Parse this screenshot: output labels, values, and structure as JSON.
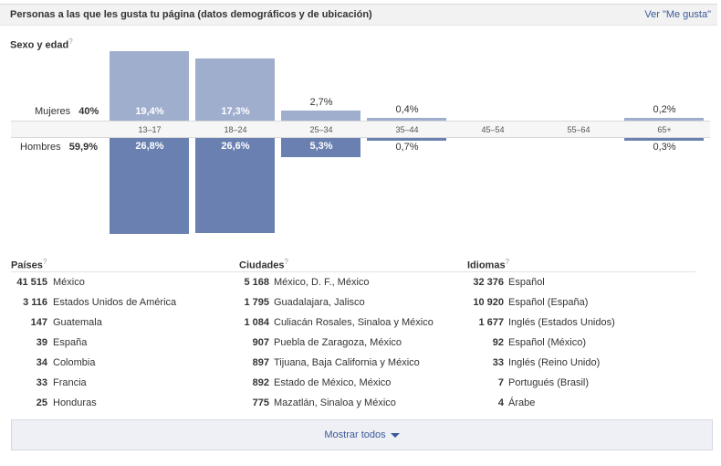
{
  "header": {
    "title": "Personas a las que les gusta tu página (datos demográficos y de ubicación)",
    "link": "Ver \"Me gusta\""
  },
  "demographics": {
    "title": "Sexo y edad",
    "help": "?",
    "female_label": "Mujeres",
    "female_total": "40%",
    "male_label": "Hombres",
    "male_total": "59,9%"
  },
  "chart_data": {
    "type": "bar",
    "title": "Sexo y edad",
    "categories": [
      "13–17",
      "18–24",
      "25–34",
      "35–44",
      "45–54",
      "55–64",
      "65+"
    ],
    "series": [
      {
        "name": "Mujeres",
        "values": [
          19.4,
          17.3,
          2.7,
          0.4,
          0,
          0,
          0.2
        ],
        "labels": [
          "19,4%",
          "17,3%",
          "2,7%",
          "0,4%",
          "",
          "",
          "0,2%"
        ]
      },
      {
        "name": "Hombres",
        "values": [
          26.8,
          26.6,
          5.3,
          0.7,
          0,
          0,
          0.3
        ],
        "labels": [
          "26,8%",
          "26,6%",
          "5,3%",
          "0,7%",
          "",
          "",
          "0,3%"
        ]
      }
    ],
    "colors": {
      "female": "#a0aecd",
      "male": "#6a80b0"
    }
  },
  "countries": {
    "title": "Países",
    "help": "?",
    "items": [
      {
        "count": "41 515",
        "name": "México"
      },
      {
        "count": "3 116",
        "name": "Estados Unidos de América"
      },
      {
        "count": "147",
        "name": "Guatemala"
      },
      {
        "count": "39",
        "name": "España"
      },
      {
        "count": "34",
        "name": "Colombia"
      },
      {
        "count": "33",
        "name": "Francia"
      },
      {
        "count": "25",
        "name": "Honduras"
      }
    ]
  },
  "cities": {
    "title": "Ciudades",
    "help": "?",
    "items": [
      {
        "count": "5 168",
        "name": "México, D. F., México"
      },
      {
        "count": "1 795",
        "name": "Guadalajara, Jalisco"
      },
      {
        "count": "1 084",
        "name": "Culiacán Rosales, Sinaloa y México"
      },
      {
        "count": "907",
        "name": "Puebla de Zaragoza, México"
      },
      {
        "count": "897",
        "name": "Tijuana, Baja California y México"
      },
      {
        "count": "892",
        "name": "Estado de México, México"
      },
      {
        "count": "775",
        "name": "Mazatlán, Sinaloa y México"
      }
    ]
  },
  "languages": {
    "title": "Idiomas",
    "help": "?",
    "items": [
      {
        "count": "32 376",
        "name": "Español"
      },
      {
        "count": "10 920",
        "name": "Español (España)"
      },
      {
        "count": "1 677",
        "name": "Inglés (Estados Unidos)"
      },
      {
        "count": "92",
        "name": "Español (México)"
      },
      {
        "count": "33",
        "name": "Inglés (Reino Unido)"
      },
      {
        "count": "7",
        "name": "Portugués (Brasil)"
      },
      {
        "count": "4",
        "name": "Árabe"
      }
    ]
  },
  "footer": {
    "show_all": "Mostrar todos"
  }
}
